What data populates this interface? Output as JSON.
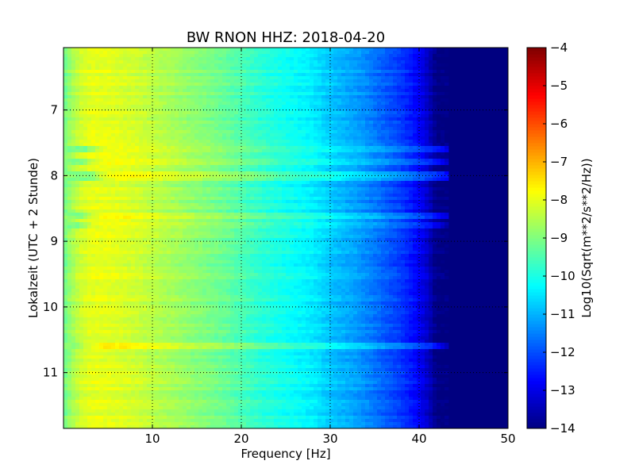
{
  "chart_data": {
    "type": "heatmap",
    "title": "BW RNON HHZ: 2018-04-20",
    "xlabel": "Frequency [Hz]",
    "ylabel": "Lokalzeit (UTC + 2 Stunde)",
    "xlim": [
      0,
      50
    ],
    "ylim": [
      6.05,
      11.85
    ],
    "y_inverted": true,
    "x_ticks": [
      10,
      20,
      30,
      40,
      50
    ],
    "x_tick_labels": [
      "10",
      "20",
      "30",
      "40",
      "50"
    ],
    "y_ticks": [
      7,
      8,
      9,
      10,
      11
    ],
    "y_tick_labels": [
      "7",
      "8",
      "9",
      "10",
      "11"
    ],
    "grid": true,
    "colormap": "jet",
    "colorbar": {
      "label": "Log10(Sqrt(m**2/s**2/Hz))",
      "range": [
        -14,
        -4
      ],
      "ticks": [
        -4,
        -5,
        -6,
        -7,
        -8,
        -9,
        -10,
        -11,
        -12,
        -13,
        -14
      ],
      "tick_labels": [
        "−4",
        "−5",
        "−6",
        "−7",
        "−8",
        "−9",
        "−10",
        "−11",
        "−12",
        "−13",
        "−14"
      ]
    },
    "frequency_profile": {
      "frequency_hz": [
        0,
        1,
        2,
        3,
        5,
        8,
        10,
        12,
        15,
        18,
        20,
        22,
        25,
        28,
        30,
        33,
        35,
        38,
        40,
        41,
        42,
        50
      ],
      "log10_psd": [
        -9.2,
        -8.6,
        -8.2,
        -8.0,
        -8.0,
        -8.2,
        -8.4,
        -8.6,
        -8.9,
        -9.2,
        -9.5,
        -9.8,
        -10.1,
        -10.4,
        -10.8,
        -11.2,
        -11.6,
        -12.2,
        -12.8,
        -13.3,
        -14.0,
        -14.0
      ]
    },
    "distinct_time_bands": [
      {
        "time": 7.6,
        "extra_bandwidth_hz": 2.5
      },
      {
        "time": 7.8,
        "extra_bandwidth_hz": 2.0
      },
      {
        "time": 8.0,
        "extra_bandwidth_hz": 3.0
      },
      {
        "time": 8.6,
        "extra_bandwidth_hz": 2.0
      },
      {
        "time": 8.75,
        "extra_bandwidth_hz": 1.5
      },
      {
        "time": 10.6,
        "extra_bandwidth_hz": 1.5
      }
    ]
  }
}
